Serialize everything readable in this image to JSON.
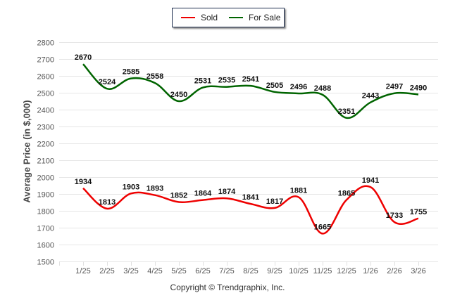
{
  "chart_data": {
    "type": "line",
    "title": "",
    "xlabel": "",
    "ylabel": "Average Price (in $,000)",
    "ylim": [
      1500,
      2800
    ],
    "yticks": [
      1500,
      1600,
      1700,
      1800,
      1900,
      2000,
      2100,
      2200,
      2300,
      2400,
      2500,
      2600,
      2700,
      2800
    ],
    "grid": true,
    "legend_position": "top-center",
    "categories": [
      "1/25",
      "2/25",
      "3/25",
      "4/25",
      "5/25",
      "6/25",
      "7/25",
      "8/25",
      "9/25",
      "10/25",
      "11/25",
      "12/25",
      "1/26",
      "2/26",
      "3/26"
    ],
    "series": [
      {
        "name": "Sold",
        "color": "#ee0000",
        "values": [
          1934,
          1813,
          1903,
          1893,
          1852,
          1864,
          1874,
          1841,
          1817,
          1881,
          1665,
          1865,
          1941,
          1733,
          1755
        ]
      },
      {
        "name": "For Sale",
        "color": "#006400",
        "values": [
          2670,
          2524,
          2585,
          2558,
          2450,
          2531,
          2535,
          2541,
          2505,
          2496,
          2488,
          2351,
          2443,
          2497,
          2490
        ]
      }
    ]
  },
  "legend": {
    "items": [
      {
        "label": "Sold",
        "color": "#ee0000"
      },
      {
        "label": "For Sale",
        "color": "#006400"
      }
    ]
  },
  "footer": {
    "copyright": "Copyright © Trendgraphix, Inc."
  }
}
